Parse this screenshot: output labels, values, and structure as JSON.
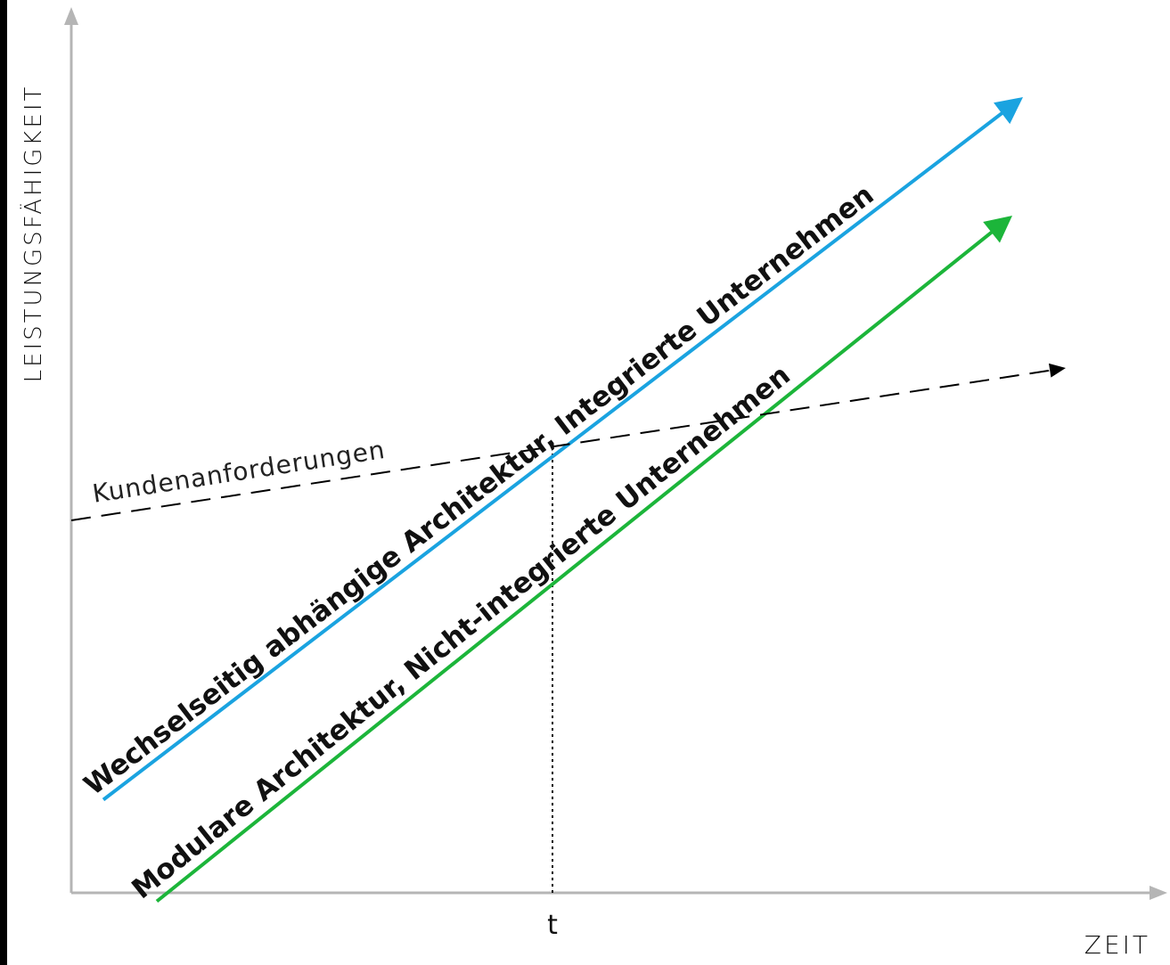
{
  "chart_data": {
    "type": "line",
    "xlabel": "ZEIT",
    "ylabel": "LEISTUNGSFÄHIGKEIT",
    "xlim": [
      0,
      100
    ],
    "ylim": [
      0,
      100
    ],
    "x_ticks": [
      {
        "x": 45,
        "label": "t"
      }
    ],
    "series": [
      {
        "name": "Wechselseitig abhängige Architektur, Integrierte Unternehmen",
        "color": "#1aa3e0",
        "style": "solid",
        "arrow": true,
        "x": [
          3,
          89
        ],
        "y": [
          11,
          94
        ]
      },
      {
        "name": "Modulare Architektur, Nicht-integrierte Unternehmen",
        "color": "#1cb53a",
        "style": "solid",
        "arrow": true,
        "x": [
          8,
          88
        ],
        "y": [
          -1,
          80
        ]
      },
      {
        "name": "Kundenanforderungen",
        "color": "#000000",
        "style": "dashed",
        "arrow": true,
        "x": [
          0,
          93
        ],
        "y": [
          44,
          62
        ]
      }
    ],
    "reference_lines": [
      {
        "axis": "x",
        "x": 45,
        "style": "dotted",
        "y_top": 52.6
      }
    ],
    "grid": false,
    "legend": "none"
  }
}
